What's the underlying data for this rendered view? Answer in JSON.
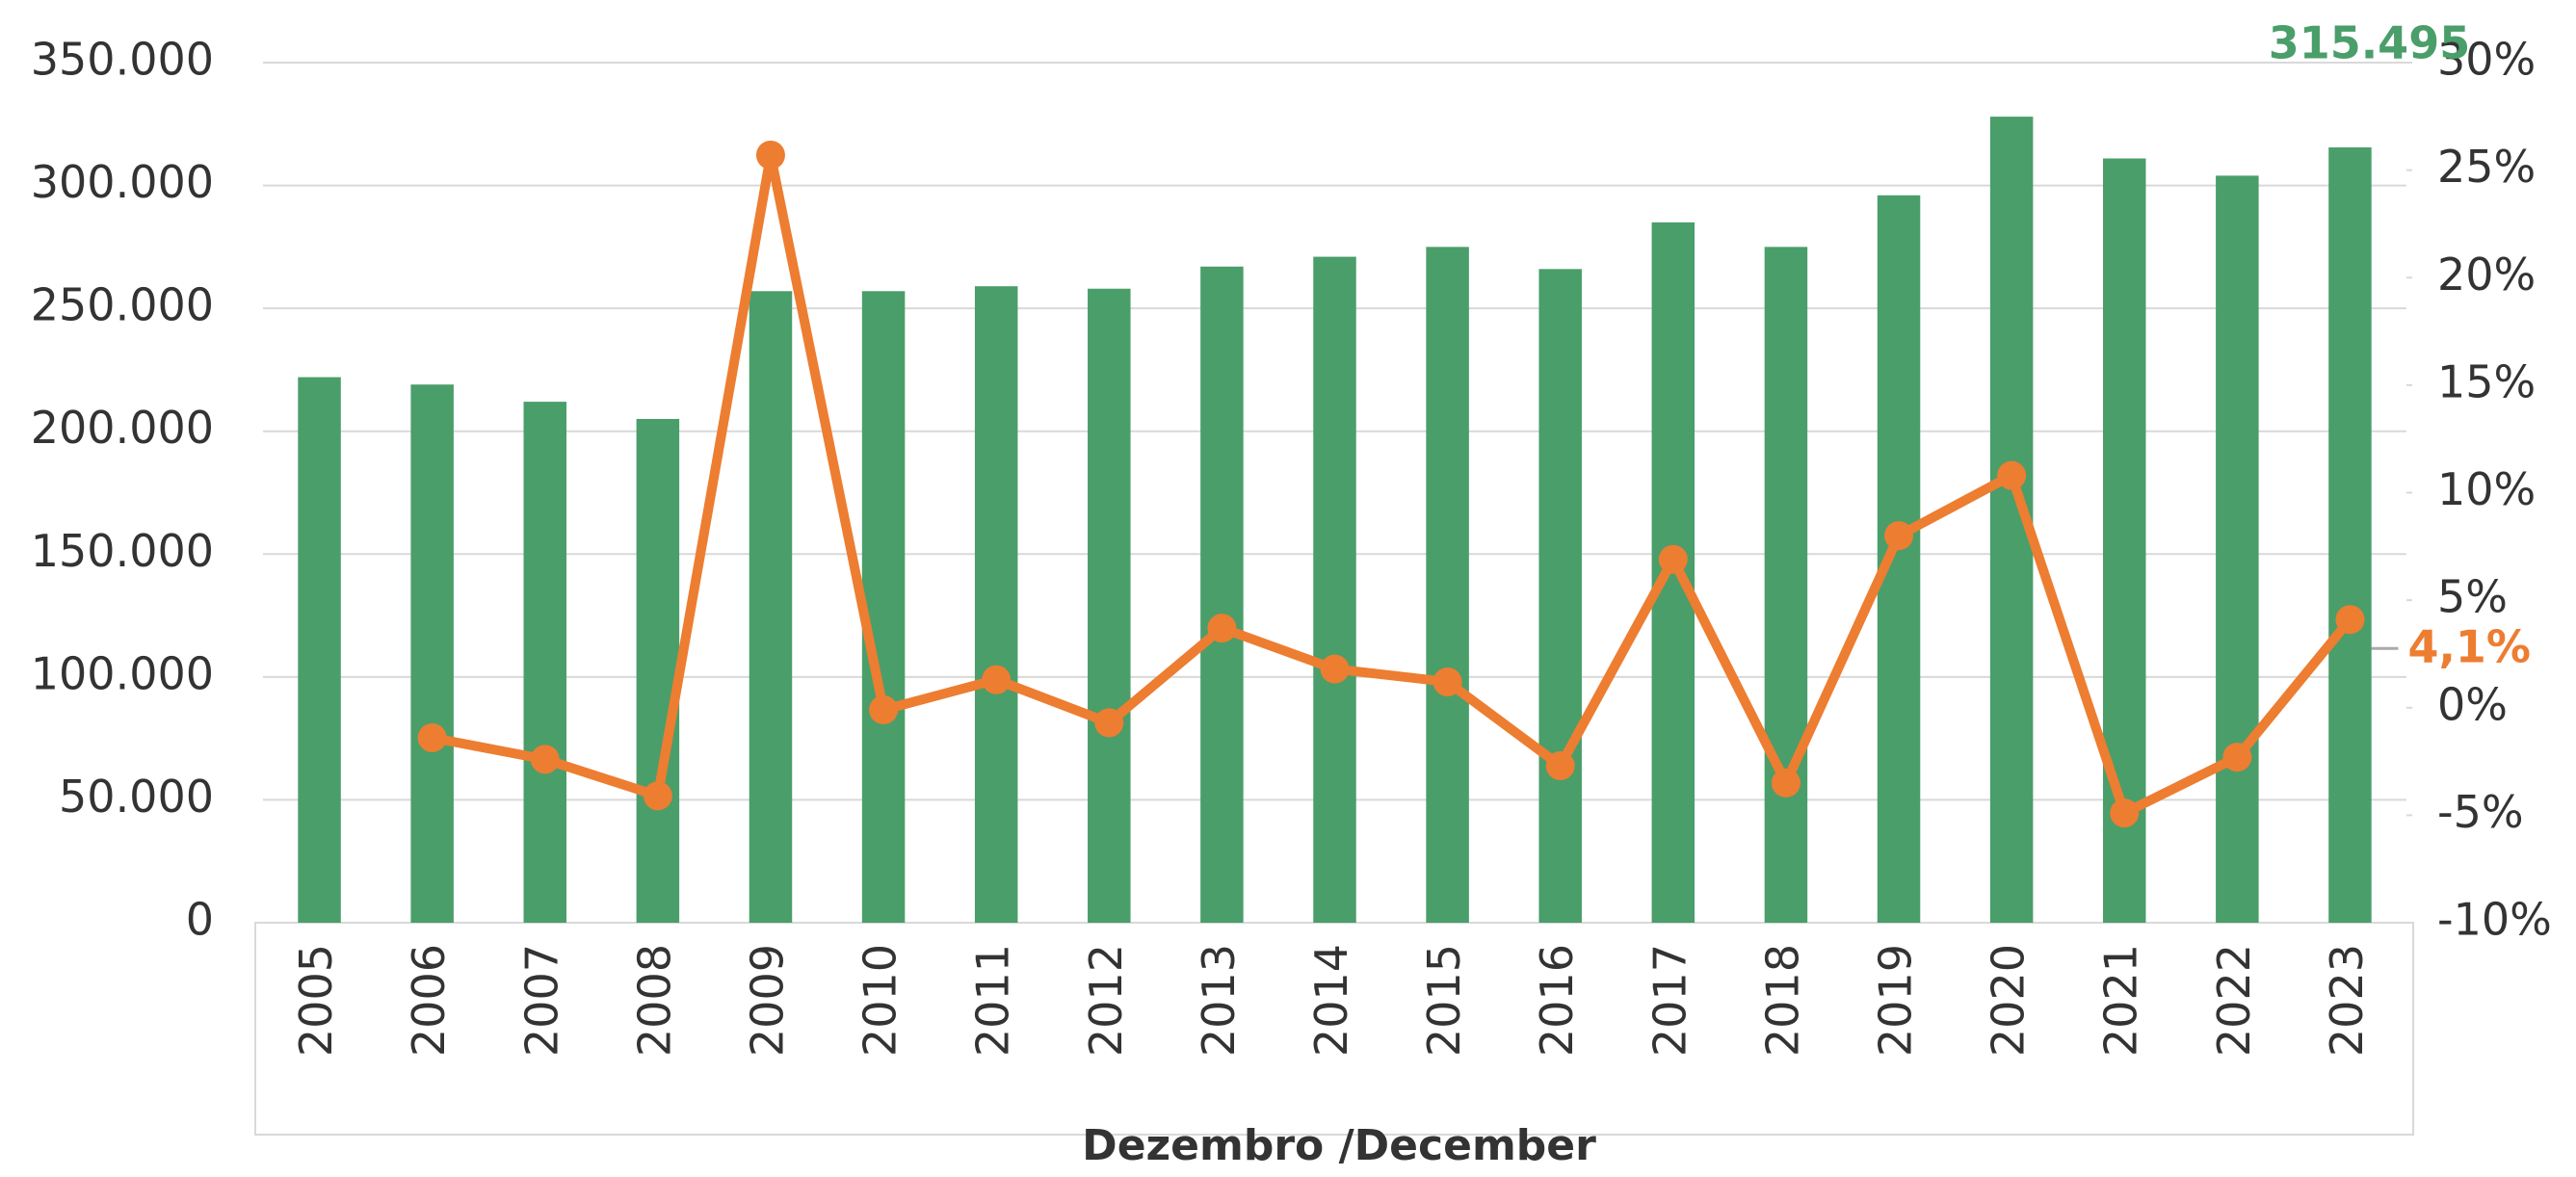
{
  "chart_data": {
    "type": "bar-line",
    "x_label": "Dezembro /December",
    "categories": [
      "2005",
      "2006",
      "2007",
      "2008",
      "2009",
      "2010",
      "2011",
      "2012",
      "2013",
      "2014",
      "2015",
      "2016",
      "2017",
      "2018",
      "2019",
      "2020",
      "2021",
      "2022",
      "2023"
    ],
    "series": [
      {
        "type": "bar",
        "color": "#4a9e6a",
        "values": [
          222000,
          219000,
          212000,
          205000,
          257000,
          257000,
          259000,
          258000,
          267000,
          271000,
          275000,
          266000,
          285000,
          275000,
          296000,
          328000,
          311000,
          304000,
          315495
        ],
        "value_labels": [
          null,
          null,
          null,
          null,
          null,
          null,
          null,
          null,
          null,
          null,
          null,
          null,
          null,
          null,
          null,
          null,
          null,
          null,
          "315.495"
        ]
      },
      {
        "type": "line",
        "axis": "y2",
        "color": "#ed7d31",
        "values": [
          null,
          -1.4,
          -2.4,
          -4.1,
          25.7,
          -0.1,
          1.3,
          -0.7,
          3.7,
          1.8,
          1.2,
          -2.7,
          6.9,
          -3.5,
          8.0,
          10.8,
          -4.9,
          -2.3,
          4.1
        ],
        "value_labels": [
          null,
          null,
          null,
          null,
          null,
          null,
          null,
          null,
          null,
          null,
          null,
          null,
          null,
          null,
          null,
          null,
          null,
          null,
          "4,1%"
        ]
      }
    ],
    "ylim": [
      0,
      350000
    ],
    "yticks": [
      0,
      {
        "value": 50000,
        "label": "50.000"
      },
      {
        "value": 100000,
        "label": "100.000"
      },
      {
        "value": 150000,
        "label": "150.000"
      },
      {
        "value": 200000,
        "label": "200.000"
      },
      {
        "value": 250000,
        "label": "250.000"
      },
      {
        "value": 300000,
        "label": "300.000"
      },
      {
        "value": 350000,
        "label": "350.000"
      }
    ],
    "y2lim": [
      -10,
      30
    ],
    "y2ticks": [
      {
        "value": -10,
        "label": "-10%"
      },
      {
        "value": -5,
        "label": "-5%"
      },
      {
        "value": 0,
        "label": "0%"
      },
      {
        "value": 5,
        "label": "5%"
      },
      {
        "value": 10,
        "label": "10%"
      },
      {
        "value": 15,
        "label": "15%"
      },
      {
        "value": 20,
        "label": "20%"
      },
      {
        "value": 25,
        "label": "25%"
      },
      {
        "value": 30,
        "label": "30%"
      }
    ],
    "grid": true
  }
}
